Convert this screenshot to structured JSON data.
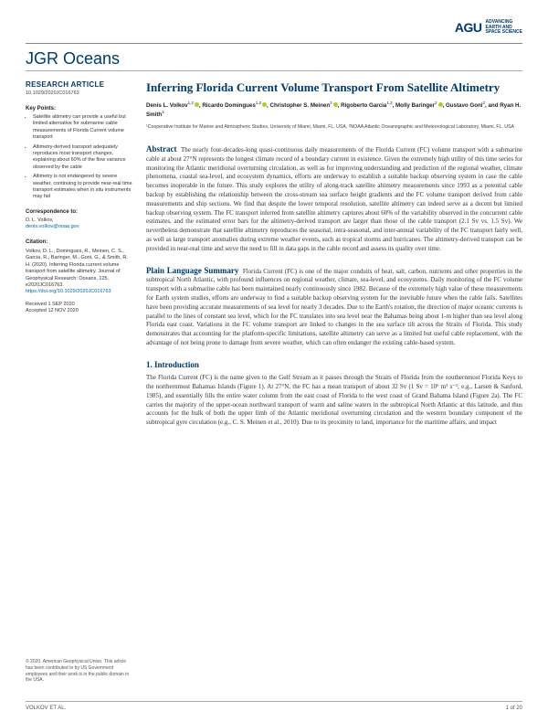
{
  "publisher": {
    "mark": "AGU",
    "tagline_l1": "ADVANCING",
    "tagline_l2": "EARTH AND",
    "tagline_l3": "SPACE SCIENCE"
  },
  "journal": {
    "prefix": "JGR",
    "name": "Oceans"
  },
  "sidebar": {
    "article_type": "RESEARCH ARTICLE",
    "doi": "10.1029/2020JC016763",
    "key_points_head": "Key Points:",
    "key_points": [
      "Satellite altimetry can provide a useful but limited alternative for submarine cable measurements of Florida Current volume transport",
      "Altimetry-derived transport adequately reproduces most transport changes, explaining about 60% of the flow variance observed by the cable",
      "Altimetry is not endangered by severe weather, continuing to provide near-real time transport estimates when in situ instruments may fail"
    ],
    "corr_head": "Correspondence to:",
    "corr_name": "D. L. Volkov,",
    "corr_email": "denis.volkov@noaa.gov",
    "cite_head": "Citation:",
    "cite_body": "Volkov, D. L., Domingues, R., Meinen, C. S., Garcia, R., Baringer, M., Goni, G., & Smith, R. H. (2020). Inferring Florida current volume transport from satellite altimetry. Journal of Geophysical Research: Oceans, 125, e2020JC016763.",
    "cite_doi": "https://doi.org/10.1029/2020JC016763",
    "received": "Received 1 SEP 2020",
    "accepted": "Accepted 12 NOV 2020",
    "copyright": "© 2020. American Geophysical Union. This article has been contributed to by US Government employees and their work is in the public domain in the USA."
  },
  "article": {
    "title": "Inferring Florida Current Volume Transport From Satellite Altimetry",
    "authors_html": "Denis L. Volkov<sup>1,2</sup>◎, Ricardo Domingues<sup>1,2</sup>◎, Christopher S. Meinen<sup>2</sup>◎, Rigoberto Garcia<sup>1,2</sup>, Molly Baringer<sup>2</sup>◎, Gustavo Goni<sup>2</sup>, and Ryan H. Smith<sup>2</sup>",
    "affiliations": "¹Cooperative Institute for Marine and Atmospheric Studies, University of Miami, Miami, FL, USA, ²NOAA Atlantic Oceanographic and Meteorological Laboratory, Miami, FL, USA",
    "abstract_head": "Abstract",
    "abstract": "The nearly four-decades-long quasi-continuous daily measurements of the Florida Current (FC) volume transport with a submarine cable at about 27°N represents the longest climate record of a boundary current in existence. Given the extremely high utility of this time series for monitoring the Atlantic meridional overturning circulation, as well as for improving understanding and prediction of the regional weather, climate phenomena, coastal sea-level, and ecosystem dynamics, efforts are underway to establish a suitable backup observing system in case the cable becomes inoperable in the future. This study explores the utility of along-track satellite altimetry measurements since 1993 as a potential cable backup by establishing the relationship between the cross-stream sea surface height gradients and the FC volume transport derived from cable measurements and ship sections. We find that despite the lower temporal resolution, satellite altimetry can indeed serve as a decent but limited backup observing system. The FC transport inferred from satellite altimetry captures about 60% of the variability observed in the concurrent cable estimates, and the estimated error bars for the altimetry-derived transport are larger than those of the cable transport (2.1 Sv vs. 1.5 Sv). We nevertheless demonstrate that satellite altimetry reproduces the seasonal, intra-seasonal, and inter-annual variability of the FC transport fairly well, as well as large transport anomalies during extreme weather events, such as tropical storms and hurricanes. The altimetry-derived transport can be provided in near-real time and serve the need to fill in data gaps in the cable record and assess its quality over time.",
    "pls_head": "Plain Language Summary",
    "pls": "Florida Current (FC) is one of the major conduits of heat, salt, carbon, nutrients and other properties in the subtropical North Atlantic, with profound influences on regional weather, climate, sea-level, and ecosystems. Daily monitoring of the FC volume transport with a submarine cable has been maintained nearly continuously since 1982. Because of the extremely high value of these measurements for Earth system studies, efforts are underway to find a suitable backup observing system for the inevitable future when the cable fails. Satellites have been providing accurate measurements of sea level for nearly 3 decades. Due to the Earth's rotation, the direction of major oceanic currents is parallel to the lines of constant sea level, which for the FC translates into sea level near the Bahamas being about 1-m higher than sea level along Florida east coast. Variations in the FC volume transport are linked to changes in the sea surface tilt across the Straits of Florida. This study demonstrates that accounting for the platform-specific limitations, satellite altimetry can serve as a limited but useful cable replacement, with the advantage of not being prone to damage from severe weather, which can often endanger the existing cable-based system.",
    "intro_head": "1.  Introduction",
    "intro": "The Florida Current (FC) is the name given to the Gulf Stream as it passes through the Straits of Florida from the southernmost Florida Keys to the northernmost Bahamas Islands (Figure 1). At 27°N, the FC has a mean transport of about 32 Sv (1 Sv = 10⁶ m³ s⁻¹; e.g., Larsen & Sanford, 1985), and essentially fills the entire water column from the east coast of Florida to the west coast of Grand Bahama Island (Figure 2a). The FC carries the majority of the upper-ocean northward transport of warm and saline waters in the subtropical North Atlantic at this latitude, and thus accounts for the bulk of both the upper limb of the Atlantic meridional overturning circulation and the western boundary component of the subtropical gyre circulation (e.g., C. S. Meinen et al., 2010). Due to its proximity to land, importance for the maritime affairs, and impact"
  },
  "footer": {
    "left": "VOLKOV ET AL.",
    "right": "1 of 20"
  },
  "colors": {
    "brand": "#003a6c",
    "link": "#0066aa",
    "orcid": "#a6ce39",
    "rule": "#888"
  }
}
